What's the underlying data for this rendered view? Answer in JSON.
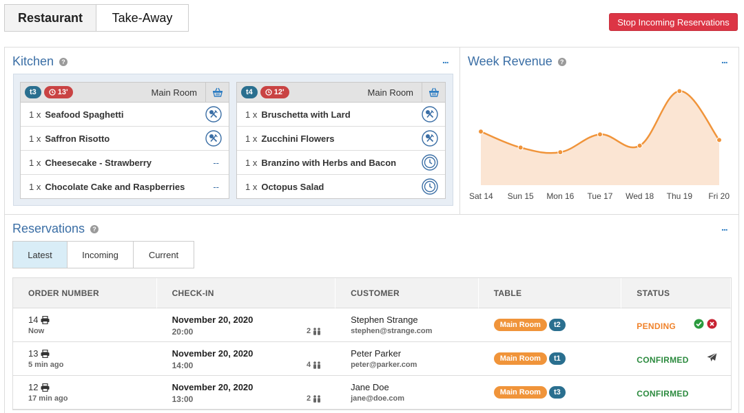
{
  "top_tabs": {
    "restaurant": "Restaurant",
    "takeaway": "Take-Away"
  },
  "stop_button": "Stop Incoming Reservations",
  "kitchen": {
    "title": "Kitchen",
    "more": "...",
    "orders": [
      {
        "table": "t3",
        "elapsed": "13'",
        "room": "Main Room",
        "items": [
          {
            "qty": "1 x",
            "dish": "Seafood Spaghetti",
            "status": "cooking"
          },
          {
            "qty": "1 x",
            "dish": "Saffron Risotto",
            "status": "cooking"
          },
          {
            "qty": "1 x",
            "dish": "Cheesecake - Strawberry",
            "status": "none",
            "dash": "--"
          },
          {
            "qty": "1 x",
            "dish": "Chocolate Cake and Raspberries",
            "status": "none",
            "dash": "--"
          }
        ]
      },
      {
        "table": "t4",
        "elapsed": "12'",
        "room": "Main Room",
        "items": [
          {
            "qty": "1 x",
            "dish": "Bruschetta with Lard",
            "status": "cooking"
          },
          {
            "qty": "1 x",
            "dish": "Zucchini Flowers",
            "status": "cooking"
          },
          {
            "qty": "1 x",
            "dish": "Branzino with Herbs and Bacon",
            "status": "waiting"
          },
          {
            "qty": "1 x",
            "dish": "Octopus Salad",
            "status": "waiting"
          }
        ]
      }
    ]
  },
  "revenue": {
    "title": "Week Revenue",
    "more": "...",
    "colors": {
      "line": "#f0943a",
      "fill": "#fbe5d3"
    },
    "chart_data": {
      "type": "area",
      "categories": [
        "Sat 14",
        "Sun 15",
        "Mon 16",
        "Tue 17",
        "Wed 18",
        "Thu 19",
        "Fri 20"
      ],
      "values": [
        57,
        40,
        35,
        54,
        42,
        100,
        48
      ],
      "ylim": [
        0,
        120
      ],
      "grid": false,
      "legend": "none"
    }
  },
  "reservations": {
    "title": "Reservations",
    "more": "...",
    "tabs": {
      "latest": "Latest",
      "incoming": "Incoming",
      "current": "Current"
    },
    "columns": {
      "order": "ORDER NUMBER",
      "checkin": "CHECK-IN",
      "customer": "CUSTOMER",
      "table": "TABLE",
      "status": "STATUS"
    },
    "rows": [
      {
        "order": "14",
        "ago": "Now",
        "date": "November 20, 2020",
        "time": "20:00",
        "guests": "2",
        "name": "Stephen Strange",
        "email": "stephen@strange.com",
        "room": "Main Room",
        "table": "t2",
        "status": "PENDING"
      },
      {
        "order": "13",
        "ago": "5 min ago",
        "date": "November 20, 2020",
        "time": "14:00",
        "guests": "4",
        "name": "Peter Parker",
        "email": "peter@parker.com",
        "room": "Main Room",
        "table": "t1",
        "status": "CONFIRMED"
      },
      {
        "order": "12",
        "ago": "17 min ago",
        "date": "November 20, 2020",
        "time": "13:00",
        "guests": "2",
        "name": "Jane Doe",
        "email": "jane@doe.com",
        "room": "Main Room",
        "table": "t3",
        "status": "CONFIRMED"
      }
    ]
  }
}
